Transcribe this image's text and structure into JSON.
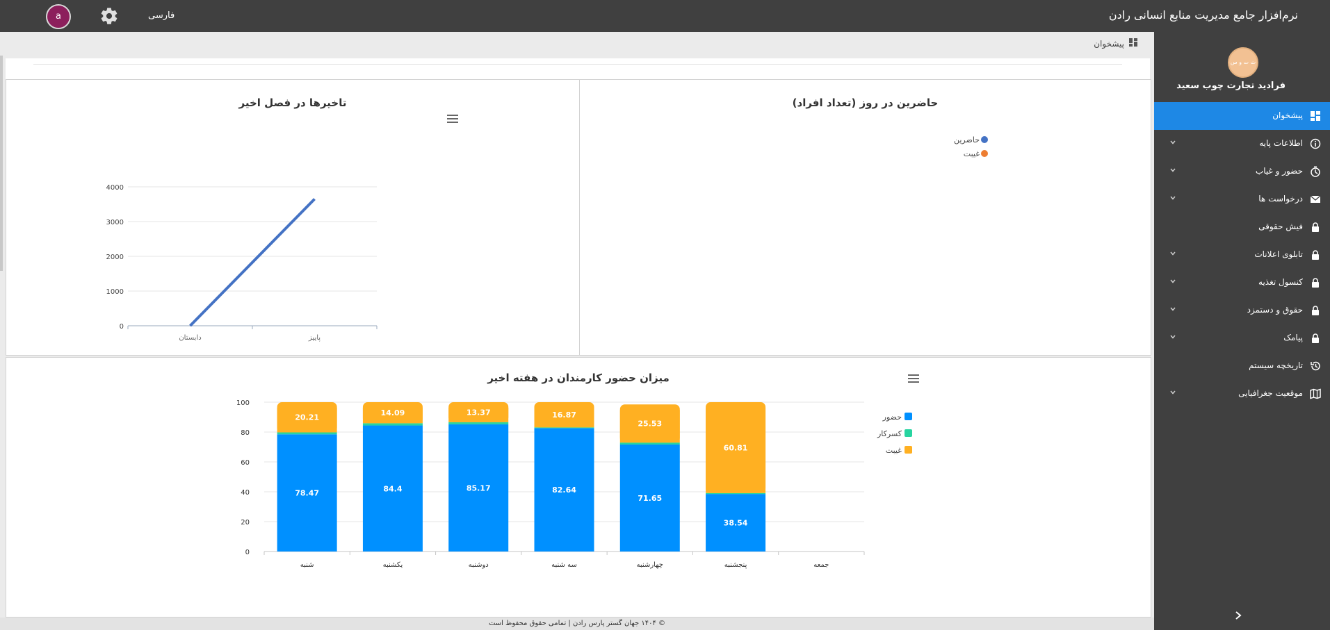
{
  "header": {
    "app_title": "نرم‌افزار جامع مدیریت منابع انسانی رادن",
    "language": "فارسی",
    "avatar_letter": "a"
  },
  "sidebar": {
    "logo_text": "ث ت و س",
    "company_name": "فرادید تجارت چوب سعید",
    "items": [
      {
        "label": "پیشخوان",
        "icon": "dashboard-icon",
        "active": true,
        "has_submenu": false
      },
      {
        "label": "اطلاعات پایه",
        "icon": "info-icon",
        "active": false,
        "has_submenu": true
      },
      {
        "label": "حضور و غیاب",
        "icon": "timer-icon",
        "active": false,
        "has_submenu": true
      },
      {
        "label": "درخواست ها",
        "icon": "envelope-icon",
        "active": false,
        "has_submenu": true
      },
      {
        "label": "فیش حقوقی",
        "icon": "lock-icon",
        "active": false,
        "has_submenu": false
      },
      {
        "label": "تابلوی اعلانات",
        "icon": "lock-icon",
        "active": false,
        "has_submenu": true
      },
      {
        "label": "کنسول تغذیه",
        "icon": "lock-icon",
        "active": false,
        "has_submenu": true
      },
      {
        "label": "حقوق و دستمزد",
        "icon": "lock-icon",
        "active": false,
        "has_submenu": true
      },
      {
        "label": "پیامک",
        "icon": "lock-icon",
        "active": false,
        "has_submenu": true
      },
      {
        "label": "تاریخچه سیستم",
        "icon": "history-icon",
        "active": false,
        "has_submenu": false
      },
      {
        "label": "موقعیت جغرافیایی",
        "icon": "map-icon",
        "active": false,
        "has_submenu": true
      }
    ]
  },
  "breadcrumb": {
    "label": "پیشخوان"
  },
  "footer": {
    "text": "© ۱۴۰۴ جهان گستر پارس رادن | تمامی حقوق محفوظ است"
  },
  "colors": {
    "sidebar_bg": "#404040",
    "active": "#1e88e5",
    "attendance": "#0090ff",
    "overtime": "#27d4a0",
    "absence": "#ffb022",
    "line": "#4472c4",
    "present_dot": "#4472c4",
    "absent_dot": "#ed7d31"
  },
  "chart_data": [
    {
      "type": "pie",
      "title": "حاضرین در روز (تعداد افراد)",
      "legend": [
        "حاضرین",
        "غیبت"
      ],
      "legend_position": "top-right",
      "values": []
    },
    {
      "type": "line",
      "title": "تاخیرها در فصل اخیر",
      "categories": [
        "دابستان",
        "پاییز"
      ],
      "series": [
        {
          "values": [
            0,
            3650
          ]
        }
      ],
      "yticks": [
        0,
        1000,
        2000,
        3000,
        4000
      ],
      "ylim": [
        0,
        4000
      ],
      "grid": true
    },
    {
      "type": "bar",
      "stacked": true,
      "title": "میزان حضور کارمندان در هفته اخیر",
      "categories": [
        "شنبه",
        "یکشنبه",
        "دوشنبه",
        "سه شنبه",
        "چهارشنبه",
        "پنجشنبه",
        "جمعه"
      ],
      "series": [
        {
          "name": "حضور",
          "values": [
            78.47,
            84.4,
            85.17,
            82.64,
            71.65,
            38.54,
            0
          ]
        },
        {
          "name": "کسرکار",
          "values": [
            1.32,
            1.51,
            1.46,
            0.49,
            1.31,
            0.65,
            0
          ]
        },
        {
          "name": "غیبت",
          "values": [
            20.21,
            14.09,
            13.37,
            16.87,
            25.53,
            60.81,
            0
          ]
        }
      ],
      "yticks": [
        0,
        20,
        40,
        60,
        80,
        100
      ],
      "ylim": [
        0,
        100
      ],
      "legend_position": "right",
      "grid": true
    }
  ]
}
